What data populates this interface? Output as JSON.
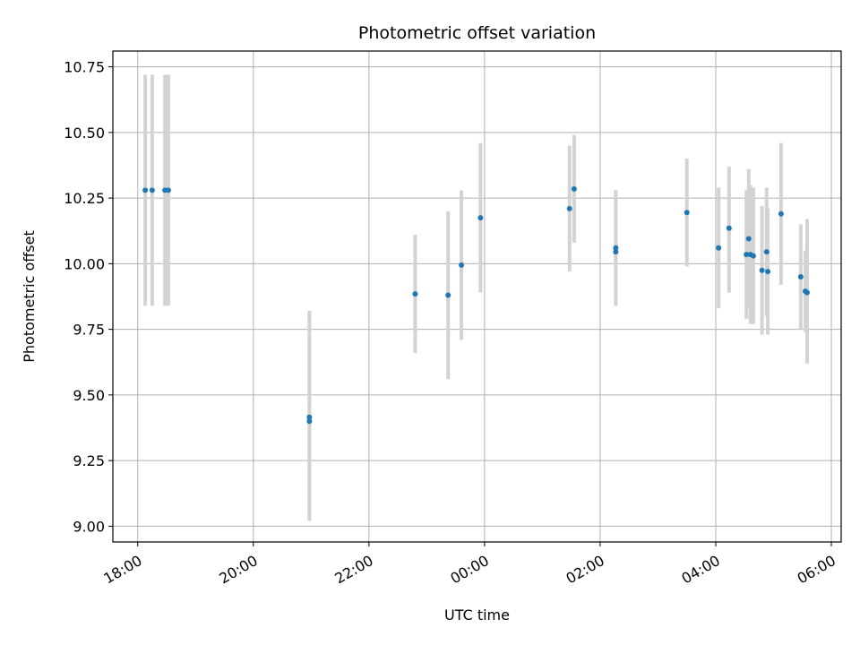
{
  "chart_data": {
    "type": "scatter",
    "title": "Photometric offset variation",
    "xlabel": "UTC time",
    "ylabel": "Photometric offset",
    "x_tick_labels": [
      "18:00",
      "20:00",
      "22:00",
      "00:00",
      "02:00",
      "04:00",
      "06:00"
    ],
    "x_tick_hours": [
      18,
      20,
      22,
      24,
      26,
      28,
      30
    ],
    "y_tick_labels": [
      "9.00",
      "9.25",
      "9.50",
      "9.75",
      "10.00",
      "10.25",
      "10.50",
      "10.75"
    ],
    "y_tick_values": [
      9.0,
      9.25,
      9.5,
      9.75,
      10.0,
      10.25,
      10.5,
      10.75
    ],
    "xlim_hours": [
      17.57,
      30.17
    ],
    "ylim": [
      8.94,
      10.81
    ],
    "grid": true,
    "colors": {
      "point": "#1f77b4",
      "errorbar": "#d3d3d3",
      "grid": "#b0b0b0"
    },
    "points": [
      {
        "t": "18:08",
        "h": 18.13,
        "y": 10.28,
        "err_low": 9.84,
        "err_high": 10.72
      },
      {
        "t": "18:15",
        "h": 18.25,
        "y": 10.28,
        "err_low": 9.84,
        "err_high": 10.72
      },
      {
        "t": "18:28",
        "h": 18.47,
        "y": 10.28,
        "err_low": 9.84,
        "err_high": 10.72
      },
      {
        "t": "18:32",
        "h": 18.53,
        "y": 10.28,
        "err_low": 9.84,
        "err_high": 10.72
      },
      {
        "t": "20:58",
        "h": 20.97,
        "y": 9.415,
        "err_low": 9.02,
        "err_high": 9.82
      },
      {
        "t": "20:58",
        "h": 20.97,
        "y": 9.4,
        "err_low": 9.02,
        "err_high": 9.82
      },
      {
        "t": "22:48",
        "h": 22.8,
        "y": 9.885,
        "err_low": 9.66,
        "err_high": 10.11
      },
      {
        "t": "23:22",
        "h": 23.37,
        "y": 9.88,
        "err_low": 9.56,
        "err_high": 10.2
      },
      {
        "t": "23:36",
        "h": 23.6,
        "y": 9.995,
        "err_low": 9.71,
        "err_high": 10.28
      },
      {
        "t": "23:56",
        "h": 23.93,
        "y": 10.175,
        "err_low": 9.89,
        "err_high": 10.46
      },
      {
        "t": "01:28",
        "h": 25.47,
        "y": 10.21,
        "err_low": 9.97,
        "err_high": 10.45
      },
      {
        "t": "01:33",
        "h": 25.55,
        "y": 10.285,
        "err_low": 10.08,
        "err_high": 10.49
      },
      {
        "t": "02:16",
        "h": 26.27,
        "y": 10.06,
        "err_low": 9.84,
        "err_high": 10.28
      },
      {
        "t": "02:16",
        "h": 26.27,
        "y": 10.045,
        "err_low": 9.84,
        "err_high": 10.28
      },
      {
        "t": "03:30",
        "h": 27.5,
        "y": 10.195,
        "err_low": 9.99,
        "err_high": 10.4
      },
      {
        "t": "04:03",
        "h": 28.05,
        "y": 10.06,
        "err_low": 9.83,
        "err_high": 10.29
      },
      {
        "t": "04:14",
        "h": 28.23,
        "y": 10.135,
        "err_low": 9.89,
        "err_high": 10.37
      },
      {
        "t": "04:32",
        "h": 28.53,
        "y": 10.035,
        "err_low": 9.79,
        "err_high": 10.28
      },
      {
        "t": "04:34",
        "h": 28.57,
        "y": 10.095,
        "err_low": 9.83,
        "err_high": 10.36
      },
      {
        "t": "04:36",
        "h": 28.6,
        "y": 10.035,
        "err_low": 9.77,
        "err_high": 10.3
      },
      {
        "t": "04:39",
        "h": 28.65,
        "y": 10.03,
        "err_low": 9.77,
        "err_high": 10.29
      },
      {
        "t": "04:48",
        "h": 28.8,
        "y": 9.975,
        "err_low": 9.73,
        "err_high": 10.22
      },
      {
        "t": "04:53",
        "h": 28.88,
        "y": 10.045,
        "err_low": 9.8,
        "err_high": 10.29
      },
      {
        "t": "04:54",
        "h": 28.9,
        "y": 9.97,
        "err_low": 9.73,
        "err_high": 10.21
      },
      {
        "t": "05:08",
        "h": 29.13,
        "y": 10.19,
        "err_low": 9.92,
        "err_high": 10.46
      },
      {
        "t": "05:28",
        "h": 29.47,
        "y": 9.95,
        "err_low": 9.75,
        "err_high": 10.15
      },
      {
        "t": "05:33",
        "h": 29.55,
        "y": 9.895,
        "err_low": 9.74,
        "err_high": 10.05
      },
      {
        "t": "05:35",
        "h": 29.58,
        "y": 9.89,
        "err_low": 9.62,
        "err_high": 10.17
      }
    ]
  }
}
